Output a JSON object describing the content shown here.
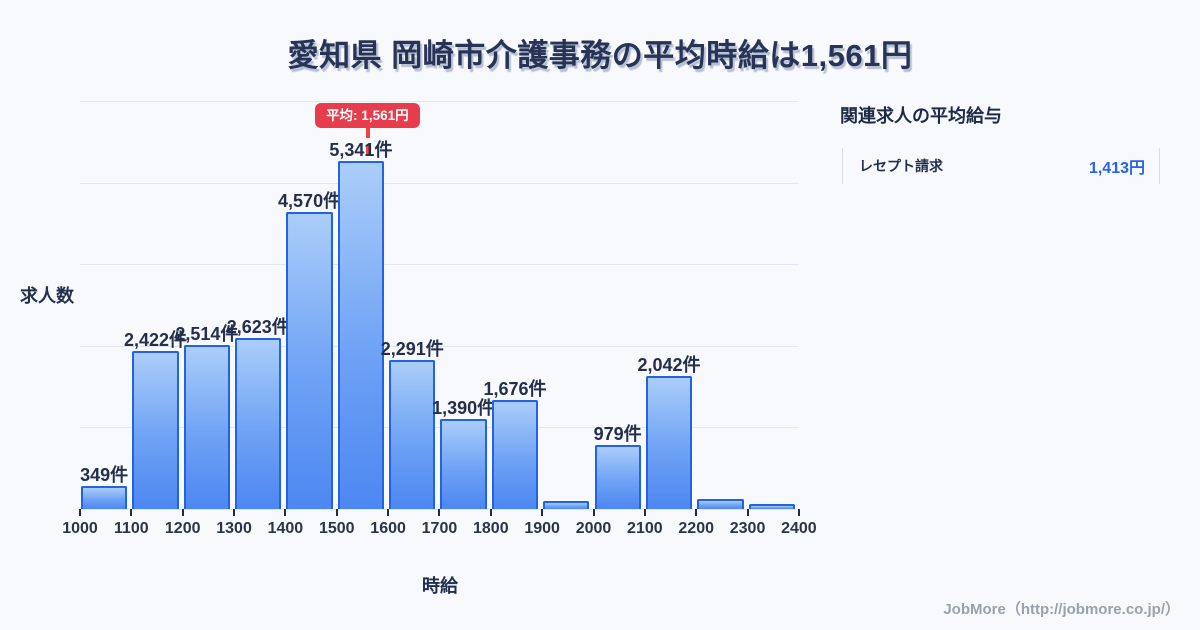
{
  "title": {
    "text": "愛知県 岡崎市介護事務の平均時給は1,561円"
  },
  "chart_data": {
    "type": "bar",
    "title": "愛知県 岡崎市介護事務の平均時給は1,561円",
    "xlabel": "時給",
    "ylabel": "求人数",
    "bin_edges": [
      1000,
      1100,
      1200,
      1300,
      1400,
      1500,
      1600,
      1700,
      1800,
      1900,
      2000,
      2100,
      2200,
      2300,
      2400
    ],
    "x_tick_labels": [
      "1000",
      "1100",
      "1200",
      "1300",
      "1400",
      "1500",
      "1600",
      "1700",
      "1800",
      "1900",
      "2000",
      "2100",
      "2200",
      "2300",
      "2400"
    ],
    "values": [
      349,
      2422,
      2514,
      2623,
      4570,
      5341,
      2291,
      1390,
      1676,
      130,
      979,
      2042,
      150,
      80
    ],
    "bar_labels": [
      "349件",
      "2,422件",
      "2,514件",
      "2,623件",
      "4,570件",
      "5,341件",
      "2,291件",
      "1,390件",
      "1,676件",
      "",
      "979件",
      "2,042件",
      "",
      ""
    ],
    "ylim": [
      0,
      6270
    ],
    "grid": true,
    "gridline_count": 6,
    "legend": false,
    "average": {
      "value": 1561,
      "badge_label": "平均: 1,561円"
    }
  },
  "side_panel": {
    "heading": "関連求人の平均給与",
    "rows": [
      {
        "label": "レセプト請求",
        "value": "1,413円"
      }
    ]
  },
  "footer": {
    "credit": "JobMore（http://jobmore.co.jp/）"
  },
  "colors": {
    "background": "#f7f9fc",
    "grid": "#e2e8f2",
    "bar_border": "#2262e3",
    "bar_gradient_top": "#abcdf9",
    "bar_gradient_bottom": "#4d87f1",
    "avg_line": "#f04545",
    "badge_bg": "#e63c4b",
    "badge_text": "#ffffff",
    "text_dark": "#273455",
    "value_blue": "#2563eb",
    "footer_gray": "#9aa2ae"
  }
}
